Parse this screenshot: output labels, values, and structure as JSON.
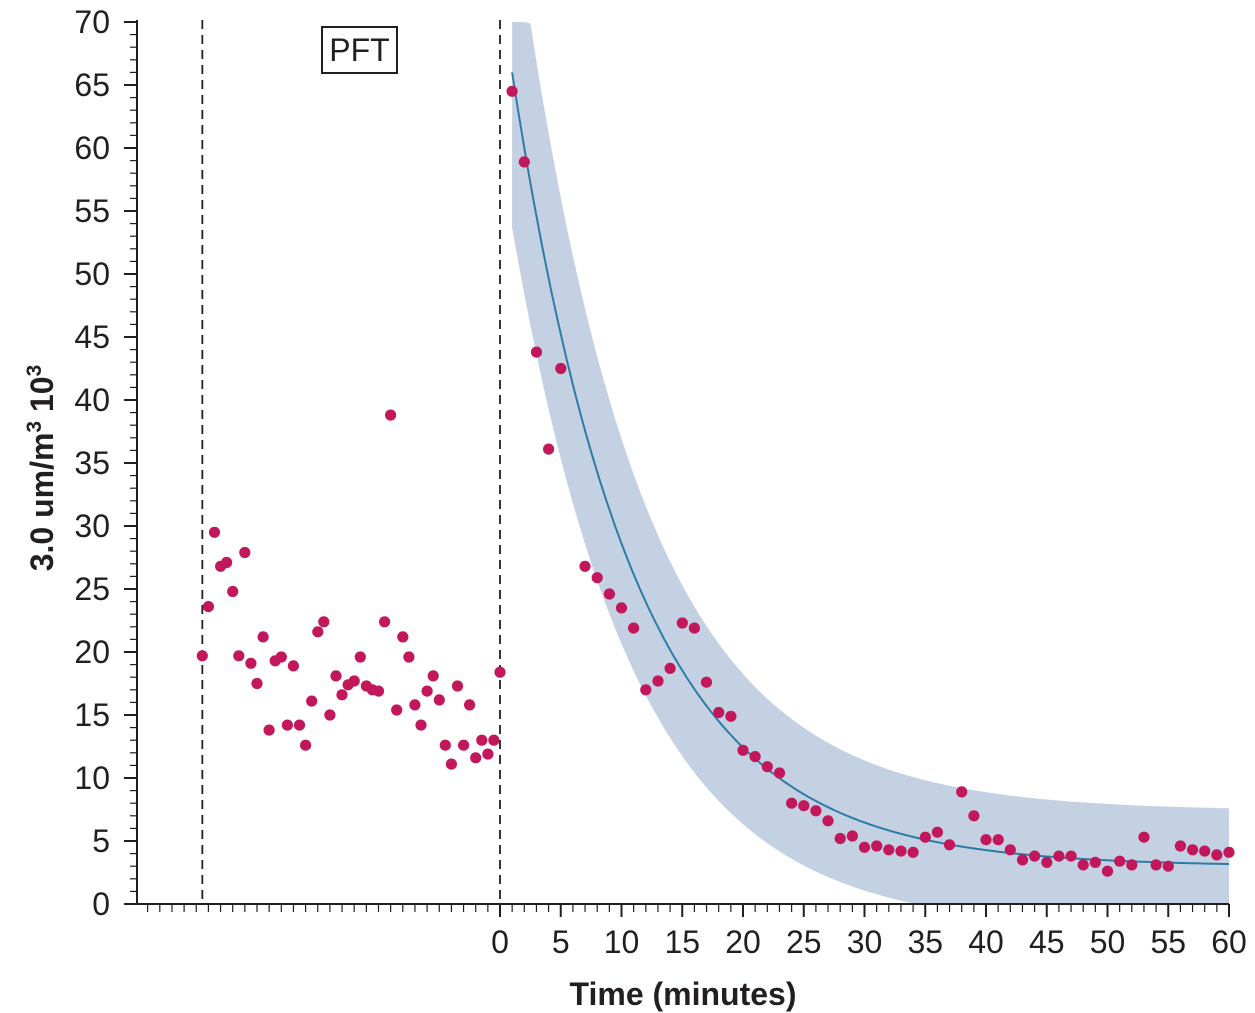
{
  "chart_data": {
    "type": "scatter",
    "title": "",
    "xlabel": "Time (minutes)",
    "ylabel": "3.0 um/m³ 10³",
    "ylabel_main": "3.0 um/m",
    "ylabel_sup": "3",
    "ylabel_tail": " 10",
    "ylabel_sup2": "3",
    "ylim": [
      0,
      70
    ],
    "xlim": [
      -24.5,
      60
    ],
    "y_ticks": [
      "0",
      "5",
      "10",
      "15",
      "20",
      "25",
      "30",
      "35",
      "40",
      "45",
      "50",
      "55",
      "60",
      "65",
      "70"
    ],
    "x_ticks": [
      "0",
      "5",
      "10",
      "15",
      "20",
      "25",
      "30",
      "35",
      "40",
      "45",
      "50",
      "55",
      "60"
    ],
    "annotation": "PFT",
    "colors": {
      "points": "#c2185b",
      "fit_line": "#2e7ca6",
      "band": "#c3d1e3",
      "axis": "#231f20"
    },
    "pre_points": [
      [
        -24.5,
        19.7
      ],
      [
        -24.0,
        23.6
      ],
      [
        -23.5,
        29.5
      ],
      [
        -23.0,
        26.8
      ],
      [
        -22.5,
        27.1
      ],
      [
        -22.0,
        24.8
      ],
      [
        -21.5,
        19.7
      ],
      [
        -21.0,
        27.9
      ],
      [
        -20.5,
        19.1
      ],
      [
        -20.0,
        17.5
      ],
      [
        -19.5,
        21.2
      ],
      [
        -19.0,
        13.8
      ],
      [
        -18.5,
        19.3
      ],
      [
        -18.0,
        19.6
      ],
      [
        -17.5,
        14.2
      ],
      [
        -17.0,
        18.9
      ],
      [
        -16.5,
        14.2
      ],
      [
        -16.0,
        12.6
      ],
      [
        -15.5,
        16.1
      ],
      [
        -15.0,
        21.6
      ],
      [
        -14.5,
        22.4
      ],
      [
        -14.0,
        15.0
      ],
      [
        -13.5,
        18.1
      ],
      [
        -13.0,
        16.6
      ],
      [
        -12.5,
        17.4
      ],
      [
        -12.0,
        17.7
      ],
      [
        -11.5,
        19.6
      ],
      [
        -11.0,
        17.3
      ],
      [
        -10.5,
        17.0
      ],
      [
        -10.0,
        16.9
      ],
      [
        -9.5,
        22.4
      ],
      [
        -9.0,
        38.8
      ],
      [
        -8.5,
        15.4
      ],
      [
        -8.0,
        21.2
      ],
      [
        -7.5,
        19.6
      ],
      [
        -7.0,
        15.8
      ],
      [
        -6.5,
        14.2
      ],
      [
        -6.0,
        16.9
      ],
      [
        -5.5,
        18.1
      ],
      [
        -5.0,
        16.2
      ],
      [
        -4.5,
        12.6
      ],
      [
        -4.0,
        11.1
      ],
      [
        -3.5,
        17.3
      ],
      [
        -3.0,
        12.6
      ],
      [
        -2.5,
        15.8
      ],
      [
        -2.0,
        11.6
      ],
      [
        -1.5,
        13.0
      ],
      [
        -1.0,
        11.9
      ],
      [
        -0.5,
        13.0
      ],
      [
        0.0,
        18.4
      ]
    ],
    "post_points": [
      [
        1,
        64.5
      ],
      [
        2,
        58.9
      ],
      [
        3,
        43.8
      ],
      [
        4,
        36.1
      ],
      [
        5,
        42.5
      ],
      [
        7,
        26.8
      ],
      [
        8,
        25.9
      ],
      [
        9,
        24.6
      ],
      [
        10,
        23.5
      ],
      [
        11,
        21.9
      ],
      [
        12,
        17.0
      ],
      [
        13,
        17.7
      ],
      [
        14,
        18.7
      ],
      [
        15,
        22.3
      ],
      [
        16,
        21.9
      ],
      [
        17,
        17.6
      ],
      [
        18,
        15.2
      ],
      [
        19,
        14.9
      ],
      [
        20,
        12.2
      ],
      [
        21,
        11.7
      ],
      [
        22,
        10.9
      ],
      [
        23,
        10.4
      ],
      [
        24,
        8.0
      ],
      [
        25,
        7.8
      ],
      [
        26,
        7.4
      ],
      [
        27,
        6.6
      ],
      [
        28,
        5.2
      ],
      [
        29,
        5.4
      ],
      [
        30,
        4.5
      ],
      [
        31,
        4.6
      ],
      [
        32,
        4.3
      ],
      [
        33,
        4.2
      ],
      [
        34,
        4.1
      ],
      [
        35,
        5.3
      ],
      [
        36,
        5.7
      ],
      [
        37,
        4.7
      ],
      [
        38,
        8.9
      ],
      [
        39,
        7.0
      ],
      [
        40,
        5.1
      ],
      [
        41,
        5.1
      ],
      [
        42,
        4.3
      ],
      [
        43,
        3.5
      ],
      [
        44,
        3.8
      ],
      [
        45,
        3.3
      ],
      [
        46,
        3.8
      ],
      [
        47,
        3.8
      ],
      [
        48,
        3.1
      ],
      [
        49,
        3.3
      ],
      [
        50,
        2.6
      ],
      [
        51,
        3.4
      ],
      [
        52,
        3.1
      ],
      [
        53,
        5.3
      ],
      [
        54,
        3.1
      ],
      [
        55,
        3.0
      ],
      [
        56,
        4.6
      ],
      [
        57,
        4.3
      ],
      [
        58,
        4.2
      ],
      [
        59,
        3.9
      ],
      [
        60,
        4.1
      ]
    ],
    "fit_curve": {
      "start_x": 1,
      "end_x": 60,
      "start_y": 66.0,
      "asymptote": 3.0,
      "decay_rate": 0.1
    },
    "confidence_band": {
      "upper_start": 70,
      "upper_end": 7.4,
      "lower_start": 53.7,
      "lower_end": 0
    }
  }
}
